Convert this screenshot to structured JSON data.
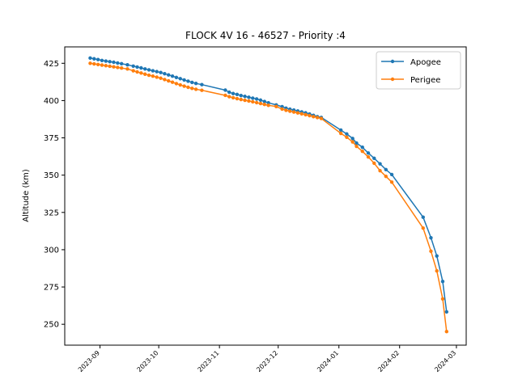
{
  "chart_data": {
    "type": "line",
    "title": "FLOCK 4V 16 - 46527 - Priority :4",
    "xlabel": "",
    "ylabel": "Altitude (km)",
    "xlim": [
      "2023-08-14",
      "2024-03-06"
    ],
    "ylim": [
      236,
      436
    ],
    "x_ticks": [
      "2023-09",
      "2023-10",
      "2023-11",
      "2023-12",
      "2024-01",
      "2024-02",
      "2024-03"
    ],
    "y_ticks": [
      250,
      275,
      300,
      325,
      350,
      375,
      400,
      425
    ],
    "grid": false,
    "legend": "top-right",
    "series": [
      {
        "name": "Apogee",
        "color": "#1f77b4",
        "marker": "circle",
        "points": [
          [
            "2023-08-27",
            428.5
          ],
          [
            "2023-08-29",
            428.0
          ],
          [
            "2023-08-31",
            427.5
          ],
          [
            "2023-09-02",
            426.9
          ],
          [
            "2023-09-04",
            426.5
          ],
          [
            "2023-09-06",
            426.1
          ],
          [
            "2023-09-08",
            425.7
          ],
          [
            "2023-09-10",
            425.2
          ],
          [
            "2023-09-12",
            424.7
          ],
          [
            "2023-09-15",
            424.0
          ],
          [
            "2023-09-18",
            423.1
          ],
          [
            "2023-09-20",
            422.5
          ],
          [
            "2023-09-22",
            421.9
          ],
          [
            "2023-09-24",
            421.2
          ],
          [
            "2023-09-26",
            420.6
          ],
          [
            "2023-09-28",
            420.0
          ],
          [
            "2023-09-30",
            419.4
          ],
          [
            "2023-10-02",
            418.8
          ],
          [
            "2023-10-04",
            418.0
          ],
          [
            "2023-10-06",
            417.2
          ],
          [
            "2023-10-08",
            416.4
          ],
          [
            "2023-10-10",
            415.5
          ],
          [
            "2023-10-12",
            414.7
          ],
          [
            "2023-10-14",
            413.8
          ],
          [
            "2023-10-16",
            413.0
          ],
          [
            "2023-10-18",
            412.2
          ],
          [
            "2023-10-20",
            411.5
          ],
          [
            "2023-10-23",
            410.7
          ],
          [
            "2023-11-04",
            407.0
          ],
          [
            "2023-11-06",
            405.6
          ],
          [
            "2023-11-08",
            404.7
          ],
          [
            "2023-11-10",
            404.1
          ],
          [
            "2023-11-12",
            403.4
          ],
          [
            "2023-11-14",
            402.8
          ],
          [
            "2023-11-16",
            402.2
          ],
          [
            "2023-11-18",
            401.6
          ],
          [
            "2023-11-20",
            401.1
          ],
          [
            "2023-11-22",
            400.3
          ],
          [
            "2023-11-24",
            399.4
          ],
          [
            "2023-11-26",
            398.5
          ],
          [
            "2023-11-30",
            397.1
          ],
          [
            "2023-12-03",
            395.9
          ],
          [
            "2023-12-05",
            394.9
          ],
          [
            "2023-12-07",
            394.2
          ],
          [
            "2023-12-09",
            393.6
          ],
          [
            "2023-12-11",
            393.0
          ],
          [
            "2023-12-13",
            392.4
          ],
          [
            "2023-12-15",
            391.8
          ],
          [
            "2023-12-17",
            391.0
          ],
          [
            "2023-12-19",
            390.1
          ],
          [
            "2023-12-21",
            389.2
          ],
          [
            "2023-12-23",
            388.7
          ],
          [
            "2024-01-02",
            380.2
          ],
          [
            "2024-01-05",
            377.6
          ],
          [
            "2024-01-08",
            374.6
          ],
          [
            "2024-01-10",
            371.5
          ],
          [
            "2024-01-13",
            368.7
          ],
          [
            "2024-01-16",
            364.8
          ],
          [
            "2024-01-19",
            361.3
          ],
          [
            "2024-01-22",
            357.6
          ],
          [
            "2024-01-25",
            353.7
          ],
          [
            "2024-01-28",
            350.4
          ],
          [
            "2024-02-13",
            321.8
          ],
          [
            "2024-02-17",
            308.0
          ],
          [
            "2024-02-20",
            295.8
          ],
          [
            "2024-02-23",
            278.7
          ],
          [
            "2024-02-25",
            258.3
          ]
        ]
      },
      {
        "name": "Perigee",
        "color": "#ff7f0e",
        "marker": "circle",
        "points": [
          [
            "2023-08-27",
            425.0
          ],
          [
            "2023-08-29",
            424.6
          ],
          [
            "2023-08-31",
            424.2
          ],
          [
            "2023-09-02",
            423.8
          ],
          [
            "2023-09-04",
            423.4
          ],
          [
            "2023-09-06",
            423.0
          ],
          [
            "2023-09-08",
            422.6
          ],
          [
            "2023-09-10",
            422.2
          ],
          [
            "2023-09-12",
            421.8
          ],
          [
            "2023-09-15",
            421.2
          ],
          [
            "2023-09-18",
            420.0
          ],
          [
            "2023-09-20",
            419.2
          ],
          [
            "2023-09-22",
            418.5
          ],
          [
            "2023-09-24",
            417.7
          ],
          [
            "2023-09-26",
            417.0
          ],
          [
            "2023-09-28",
            416.4
          ],
          [
            "2023-09-30",
            415.7
          ],
          [
            "2023-10-02",
            415.0
          ],
          [
            "2023-10-04",
            414.1
          ],
          [
            "2023-10-06",
            413.2
          ],
          [
            "2023-10-08",
            412.3
          ],
          [
            "2023-10-10",
            411.4
          ],
          [
            "2023-10-12",
            410.5
          ],
          [
            "2023-10-14",
            409.7
          ],
          [
            "2023-10-16",
            408.9
          ],
          [
            "2023-10-18",
            408.2
          ],
          [
            "2023-10-20",
            407.6
          ],
          [
            "2023-10-23",
            406.9
          ],
          [
            "2023-11-04",
            403.5
          ],
          [
            "2023-11-06",
            402.6
          ],
          [
            "2023-11-08",
            401.9
          ],
          [
            "2023-11-10",
            401.3
          ],
          [
            "2023-11-12",
            400.7
          ],
          [
            "2023-11-14",
            400.2
          ],
          [
            "2023-11-16",
            399.7
          ],
          [
            "2023-11-18",
            399.2
          ],
          [
            "2023-11-20",
            398.6
          ],
          [
            "2023-11-22",
            398.0
          ],
          [
            "2023-11-24",
            397.4
          ],
          [
            "2023-11-26",
            396.8
          ],
          [
            "2023-11-30",
            396.0
          ],
          [
            "2023-12-03",
            394.3
          ],
          [
            "2023-12-05",
            393.5
          ],
          [
            "2023-12-07",
            392.9
          ],
          [
            "2023-12-09",
            392.3
          ],
          [
            "2023-12-11",
            391.7
          ],
          [
            "2023-12-13",
            391.1
          ],
          [
            "2023-12-15",
            390.5
          ],
          [
            "2023-12-17",
            389.9
          ],
          [
            "2023-12-19",
            389.2
          ],
          [
            "2023-12-21",
            388.6
          ],
          [
            "2023-12-23",
            388.0
          ],
          [
            "2024-01-02",
            378.0
          ],
          [
            "2024-01-05",
            375.4
          ],
          [
            "2024-01-08",
            372.3
          ],
          [
            "2024-01-10",
            369.3
          ],
          [
            "2024-01-13",
            366.0
          ],
          [
            "2024-01-16",
            362.2
          ],
          [
            "2024-01-19",
            358.0
          ],
          [
            "2024-01-22",
            353.0
          ],
          [
            "2024-01-25",
            349.2
          ],
          [
            "2024-01-28",
            345.3
          ],
          [
            "2024-02-13",
            314.5
          ],
          [
            "2024-02-17",
            299.0
          ],
          [
            "2024-02-20",
            285.8
          ],
          [
            "2024-02-23",
            267.0
          ],
          [
            "2024-02-25",
            245.1
          ]
        ]
      }
    ]
  }
}
